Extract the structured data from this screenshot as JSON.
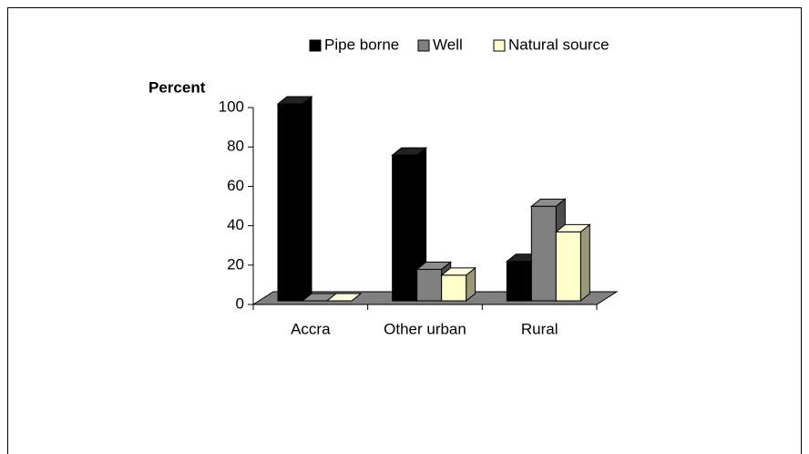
{
  "chart_data": {
    "type": "bar3d",
    "y_label": "Percent",
    "categories": [
      "Accra",
      "Other urban",
      "Rural"
    ],
    "series": [
      {
        "name": "Pipe borne",
        "color": "#000000",
        "values": [
          100,
          74,
          20
        ]
      },
      {
        "name": "Well",
        "color": "#808080",
        "values": [
          0,
          16,
          48
        ]
      },
      {
        "name": "Natural source",
        "color": "#ffffcc",
        "values": [
          0,
          13,
          35
        ]
      }
    ],
    "ylim": [
      0,
      100
    ],
    "yticks": [
      0,
      20,
      40,
      60,
      80,
      100
    ],
    "legend": "top"
  }
}
